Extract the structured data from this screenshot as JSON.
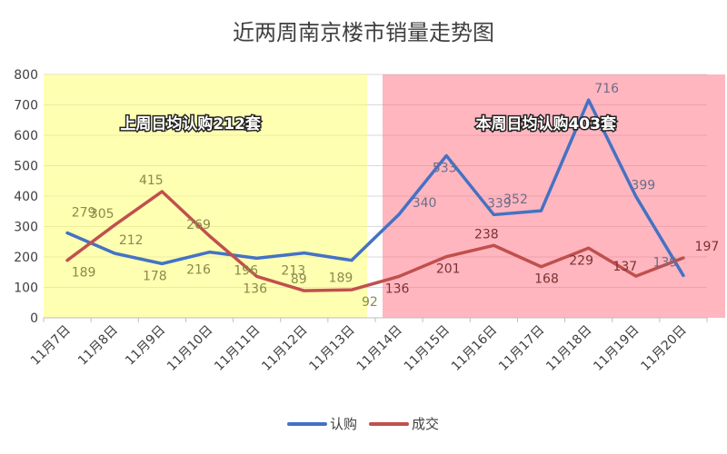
{
  "chart_data": {
    "type": "line",
    "title": "近两周南京楼市销量走势图",
    "categories": [
      "11月7日",
      "11月8日",
      "11月9日",
      "11月10日",
      "11月11日",
      "11月12日",
      "11月13日",
      "11月14日",
      "11月15日",
      "11月16日",
      "11月17日",
      "11月18日",
      "11月19日",
      "11月20日"
    ],
    "ylim": [
      0,
      800
    ],
    "yticks": [
      "0",
      "100",
      "200",
      "300",
      "400",
      "500",
      "600",
      "700",
      "800"
    ],
    "grid": true,
    "legend_position": "bottom",
    "series": [
      {
        "name": "认购",
        "color": "#4472c4",
        "values": [
          279,
          212,
          178,
          216,
          196,
          213,
          189,
          340,
          533,
          339,
          352,
          716,
          399,
          139
        ]
      },
      {
        "name": "成交",
        "color": "#c0504d",
        "values": [
          189,
          305,
          415,
          269,
          136,
          89,
          92,
          136,
          201,
          238,
          168,
          229,
          137,
          197
        ]
      }
    ],
    "regions": [
      {
        "label": "上周日均认购212套",
        "from": 0,
        "to": 6,
        "color": "#ffff66",
        "opacity": 0.5
      },
      {
        "label": "本周日均认购403套",
        "from": 7,
        "to": 13,
        "color": "#ff6d7f",
        "opacity": 0.5
      }
    ]
  }
}
